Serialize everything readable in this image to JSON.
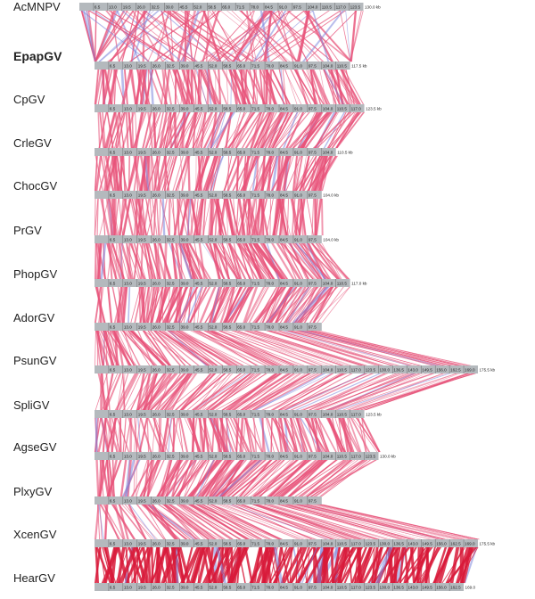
{
  "figure": {
    "tick_step_kb": 6.5,
    "colors": {
      "bar": "#b4b9bd",
      "direct_match": "#e8537a",
      "direct_match_dense": "#d81a3a",
      "inverted_match": "#7d86dc"
    },
    "genomes": [
      {
        "name": "AcMNPV",
        "bold": false,
        "end_label": "130.0 kb",
        "ticks": [
          "6.5",
          "13.0",
          "19.5",
          "26.0",
          "32.5",
          "39.0",
          "45.5",
          "52.0",
          "58.5",
          "65.0",
          "71.5",
          "78.0",
          "84.5",
          "91.0",
          "97.5",
          "104.0",
          "110.5",
          "117.0",
          "123.5"
        ]
      },
      {
        "name": "EpapGV",
        "bold": true,
        "end_label": "117.5 kb",
        "ticks": [
          "6.5",
          "13.0",
          "19.5",
          "26.0",
          "32.5",
          "39.0",
          "45.5",
          "52.0",
          "58.5",
          "65.0",
          "71.5",
          "78.0",
          "84.5",
          "91.0",
          "97.5",
          "104.0",
          "110.5"
        ]
      },
      {
        "name": "CpGV",
        "bold": false,
        "end_label": "123.5 kb",
        "ticks": [
          "6.5",
          "13.0",
          "19.5",
          "26.0",
          "32.5",
          "39.0",
          "45.5",
          "52.0",
          "58.5",
          "65.0",
          "71.5",
          "78.0",
          "84.5",
          "91.0",
          "97.5",
          "104.0",
          "110.5",
          "117.0"
        ]
      },
      {
        "name": "CrleGV",
        "bold": false,
        "end_label": "110.5 kb",
        "ticks": [
          "6.5",
          "13.0",
          "19.5",
          "26.0",
          "32.5",
          "39.0",
          "45.5",
          "52.0",
          "58.5",
          "65.0",
          "71.5",
          "78.0",
          "84.5",
          "91.0",
          "97.5",
          "104.0"
        ]
      },
      {
        "name": "ChocGV",
        "bold": false,
        "end_label": "104.0 kb",
        "ticks": [
          "6.5",
          "13.0",
          "19.5",
          "26.0",
          "32.5",
          "39.0",
          "45.5",
          "52.0",
          "58.5",
          "65.0",
          "71.5",
          "78.0",
          "84.5",
          "91.0",
          "97.5"
        ]
      },
      {
        "name": "PrGV",
        "bold": false,
        "end_label": "104.0 kb",
        "ticks": [
          "6.5",
          "13.0",
          "19.5",
          "26.0",
          "32.5",
          "39.0",
          "45.5",
          "52.0",
          "58.5",
          "65.0",
          "71.5",
          "78.0",
          "84.5",
          "91.0",
          "97.5"
        ]
      },
      {
        "name": "PhopGV",
        "bold": false,
        "end_label": "117.0 kb",
        "ticks": [
          "6.5",
          "13.0",
          "19.5",
          "26.0",
          "32.5",
          "39.0",
          "45.5",
          "52.0",
          "58.5",
          "65.0",
          "71.5",
          "78.0",
          "84.5",
          "91.0",
          "97.5",
          "104.0",
          "110.5"
        ]
      },
      {
        "name": "AdorGV",
        "bold": false,
        "end_label": "",
        "ticks": [
          "6.5",
          "13.0",
          "19.5",
          "26.0",
          "32.5",
          "39.0",
          "45.5",
          "52.0",
          "58.5",
          "65.0",
          "71.5",
          "78.0",
          "84.5",
          "91.0",
          "97.5"
        ]
      },
      {
        "name": "PsunGV",
        "bold": false,
        "end_label": "175.5 kb",
        "ticks": [
          "6.5",
          "13.0",
          "19.5",
          "26.0",
          "32.5",
          "39.0",
          "45.5",
          "52.0",
          "58.5",
          "65.0",
          "71.5",
          "78.0",
          "84.5",
          "91.0",
          "97.5",
          "104.0",
          "110.5",
          "117.0",
          "123.5",
          "130.0",
          "136.5",
          "143.0",
          "149.5",
          "156.0",
          "162.5",
          "169.0"
        ]
      },
      {
        "name": "SpliGV",
        "bold": false,
        "end_label": "123.5 kb",
        "ticks": [
          "6.5",
          "13.0",
          "19.5",
          "26.0",
          "32.5",
          "39.0",
          "45.5",
          "52.0",
          "58.5",
          "65.0",
          "71.5",
          "78.0",
          "84.5",
          "91.0",
          "97.5",
          "104.0",
          "110.5",
          "117.0"
        ]
      },
      {
        "name": "AgseGV",
        "bold": false,
        "end_label": "130.0 kb",
        "ticks": [
          "6.5",
          "13.0",
          "19.5",
          "26.0",
          "32.5",
          "39.0",
          "45.5",
          "52.0",
          "58.5",
          "65.0",
          "71.5",
          "78.0",
          "84.5",
          "91.0",
          "97.5",
          "104.0",
          "110.5",
          "117.0",
          "123.5"
        ]
      },
      {
        "name": "PlxyGV",
        "bold": false,
        "end_label": "",
        "ticks": [
          "6.5",
          "13.0",
          "19.5",
          "26.0",
          "32.5",
          "39.0",
          "45.5",
          "52.0",
          "58.5",
          "65.0",
          "71.5",
          "78.0",
          "84.5",
          "91.0",
          "97.5"
        ]
      },
      {
        "name": "XcenGV",
        "bold": false,
        "end_label": "175.5 kb",
        "ticks": [
          "6.5",
          "13.0",
          "19.5",
          "26.0",
          "32.5",
          "39.0",
          "45.5",
          "52.0",
          "58.5",
          "65.0",
          "71.5",
          "78.0",
          "84.5",
          "91.0",
          "97.5",
          "104.0",
          "110.5",
          "117.0",
          "123.5",
          "130.0",
          "136.5",
          "143.0",
          "149.5",
          "156.0",
          "162.5",
          "169.0"
        ]
      },
      {
        "name": "HearGV",
        "bold": false,
        "end_label": "169.0",
        "ticks": [
          "6.5",
          "13.0",
          "19.5",
          "26.0",
          "32.5",
          "39.0",
          "45.5",
          "52.0",
          "58.5",
          "65.0",
          "71.5",
          "78.0",
          "84.5",
          "91.0",
          "97.5",
          "104.0",
          "110.5",
          "117.0",
          "123.5",
          "130.0",
          "136.5",
          "143.0",
          "149.5",
          "156.0",
          "162.5"
        ]
      }
    ]
  }
}
